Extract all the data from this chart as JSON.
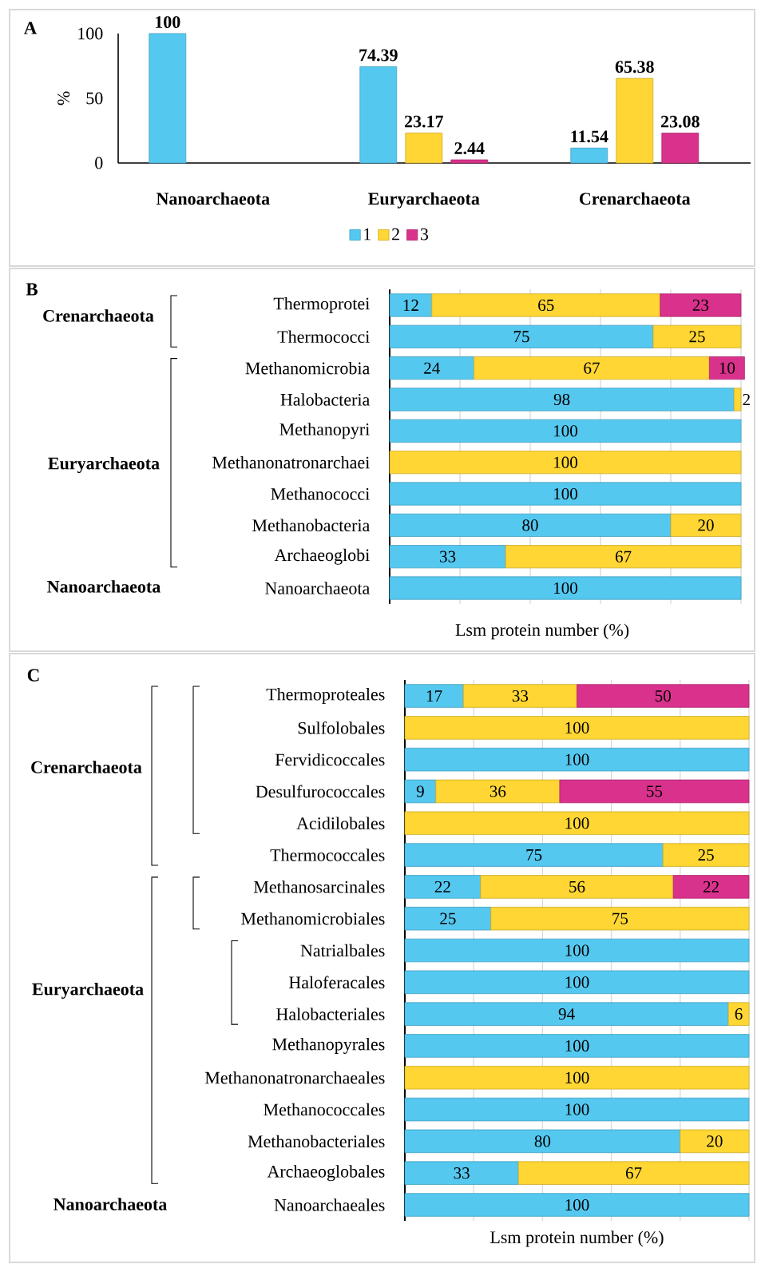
{
  "chart_data": [
    {
      "type": "bar",
      "title": "A",
      "ylabel": "%",
      "categories": [
        "Nanoarchaeota",
        "Euryarchaeota",
        "Crenarchaeota"
      ],
      "series": [
        {
          "name": "1",
          "color": "#55c8f0",
          "values": [
            100,
            74.39,
            11.54
          ]
        },
        {
          "name": "2",
          "color": "#ffd633",
          "values": [
            null,
            23.17,
            65.38
          ]
        },
        {
          "name": "3",
          "color": "#d9328c",
          "values": [
            null,
            2.44,
            23.08
          ]
        }
      ],
      "ylim": [
        0,
        100
      ],
      "yticks": [
        0,
        50,
        100
      ],
      "data_labels": true,
      "legend": "bottom"
    },
    {
      "type": "bar",
      "orientation": "horizontal",
      "stacked": true,
      "xlabel": "Lsm protein number (%)",
      "categories": [
        "Thermoprotei",
        "Thermococci",
        "Methanomicrobia",
        "Halobacteria",
        "Methanopyri",
        "Methanonatronarchaei",
        "Methanococci",
        "Methanobacteria",
        "Archaeoglobi",
        "Nanoarchaeota"
      ],
      "series": [
        {
          "color": "#55c8f0",
          "values": [
            12,
            75,
            24,
            98,
            100,
            null,
            100,
            80,
            33,
            100
          ]
        },
        {
          "color": "#ffd633",
          "values": [
            65,
            25,
            67,
            2,
            null,
            100,
            null,
            20,
            67,
            null
          ]
        },
        {
          "color": "#d9328c",
          "values": [
            23,
            null,
            10,
            null,
            null,
            null,
            null,
            null,
            null,
            null
          ]
        }
      ],
      "xlim": [
        0,
        101
      ],
      "xticks": [
        {
          "value": 0,
          "label": null
        },
        {
          "value": 20,
          "label": null
        },
        {
          "value": 40,
          "label": null
        },
        {
          "value": 60,
          "label": null
        },
        {
          "value": 80,
          "label": null
        },
        {
          "value": 100,
          "label": null
        }
      ],
      "grid": "x",
      "tick_labels": "y",
      "data_labels": true,
      "annotations": [
        "B",
        "Crenarchaeota",
        "Euryarchaeota",
        "Nanoarchaeota"
      ]
    },
    {
      "type": "bar",
      "orientation": "horizontal",
      "stacked": true,
      "xlabel": "Lsm protein number (%)",
      "categories": [
        "Thermoproteales",
        "Sulfolobales",
        "Fervidicoccales",
        "Desulfurococcales",
        "Acidilobales",
        "Thermococcales",
        "Methanosarcinales",
        "Methanomicrobiales",
        "Natrialbales",
        "Haloferacales",
        "Halobacteriales",
        "Methanopyrales",
        "Methanonatronarchaeales",
        "Methanococcales",
        "Methanobacteriales",
        "Archaeoglobales",
        "Nanoarchaeales"
      ],
      "series": [
        {
          "color": "#55c8f0",
          "values": [
            17,
            null,
            100,
            9,
            null,
            75,
            22,
            25,
            100,
            100,
            94,
            100,
            null,
            100,
            80,
            33,
            100
          ]
        },
        {
          "color": "#ffd633",
          "values": [
            33,
            100,
            null,
            36,
            100,
            25,
            56,
            75,
            null,
            null,
            6,
            null,
            100,
            null,
            20,
            67,
            null
          ]
        },
        {
          "color": "#d9328c",
          "values": [
            50,
            null,
            null,
            55,
            null,
            null,
            22,
            null,
            null,
            null,
            null,
            null,
            null,
            null,
            null,
            null,
            null
          ]
        }
      ],
      "xlim": [
        0,
        100
      ],
      "xticks": [
        {
          "value": 0,
          "label": null
        },
        {
          "value": 20,
          "label": null
        },
        {
          "value": 40,
          "label": null
        },
        {
          "value": 60,
          "label": null
        },
        {
          "value": 80,
          "label": null
        },
        {
          "value": 100,
          "label": null
        }
      ],
      "grid": "x",
      "tick_labels": "y",
      "data_labels": true,
      "annotations": [
        "C",
        "Crenarchaeota",
        "Euryarchaeota",
        "Nanoarchaeota"
      ]
    }
  ]
}
